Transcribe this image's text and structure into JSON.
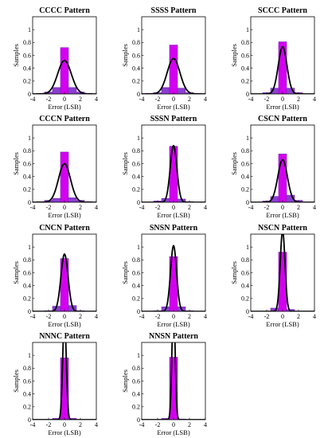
{
  "figure": {
    "colors": {
      "bar_fill": "#d400f0",
      "bar_stroke": "#7a22b8",
      "low_bar_fill": "#8b3fd0",
      "curve": "#000000",
      "axis": "#000000"
    }
  },
  "chart_data": [
    {
      "type": "bar",
      "title": "CCCC Pattern",
      "xlabel": "Error (LSB)",
      "ylabel": "Samples",
      "xlim": [
        -4,
        4
      ],
      "ylim": [
        0,
        1.2
      ],
      "xticks": [
        "-4",
        "-2",
        "0",
        "2",
        "4"
      ],
      "yticks": [
        "0",
        "0.2",
        "0.4",
        "0.6",
        "0.8",
        "1"
      ],
      "bins": [
        -3,
        -2,
        -1,
        0,
        1,
        2,
        3
      ],
      "values": [
        0.01,
        0.03,
        0.1,
        0.72,
        0.1,
        0.03,
        0.01
      ],
      "fit": {
        "mu": 0,
        "sigma": 0.85,
        "peak": 0.52
      }
    },
    {
      "type": "bar",
      "title": "SSSS Pattern",
      "xlabel": "Error (LSB)",
      "ylabel": "Samples",
      "xlim": [
        -4,
        4
      ],
      "ylim": [
        0,
        1.2
      ],
      "xticks": [
        "-4",
        "-2",
        "0",
        "2",
        "4"
      ],
      "yticks": [
        "0",
        "0.2",
        "0.4",
        "0.6",
        "0.8",
        "1"
      ],
      "bins": [
        -3,
        -2,
        -1,
        0,
        1,
        2,
        3
      ],
      "values": [
        0.01,
        0.02,
        0.1,
        0.76,
        0.09,
        0.02,
        0.01
      ],
      "fit": {
        "mu": 0,
        "sigma": 0.8,
        "peak": 0.55
      }
    },
    {
      "type": "bar",
      "title": "SCCC Pattern",
      "xlabel": "Error (LSB)",
      "ylabel": "Samples",
      "xlim": [
        -4,
        4
      ],
      "ylim": [
        0,
        1.2
      ],
      "xticks": [
        "-4",
        "-2",
        "0",
        "2",
        "4"
      ],
      "yticks": [
        "0",
        "0.2",
        "0.4",
        "0.6",
        "0.8",
        "1"
      ],
      "bins": [
        -2,
        -1,
        0,
        1,
        2
      ],
      "values": [
        0.02,
        0.09,
        0.81,
        0.09,
        0.02
      ],
      "fit": {
        "mu": 0,
        "sigma": 0.55,
        "peak": 0.73
      }
    },
    {
      "type": "bar",
      "title": "CCCN Pattern",
      "xlabel": "Error (LSB)",
      "ylabel": "Samples",
      "xlim": [
        -4,
        4
      ],
      "ylim": [
        0,
        1.2
      ],
      "xticks": [
        "-4",
        "-2",
        "0",
        "2",
        "4"
      ],
      "yticks": [
        "0",
        "0.2",
        "0.4",
        "0.6",
        "0.8",
        "1"
      ],
      "bins": [
        -3,
        -2,
        -1,
        0,
        1,
        2,
        3
      ],
      "values": [
        0.01,
        0.03,
        0.06,
        0.78,
        0.07,
        0.03,
        0.01
      ],
      "fit": {
        "mu": 0,
        "sigma": 0.75,
        "peak": 0.6
      }
    },
    {
      "type": "bar",
      "title": "SSSN Pattern",
      "xlabel": "Error (LSB)",
      "ylabel": "Samples",
      "xlim": [
        -4,
        4
      ],
      "ylim": [
        0,
        1.2
      ],
      "xticks": [
        "-4",
        "-2",
        "0",
        "2",
        "4"
      ],
      "yticks": [
        "0",
        "0.2",
        "0.4",
        "0.6",
        "0.8",
        "1"
      ],
      "bins": [
        -2,
        -1,
        0,
        1,
        2
      ],
      "values": [
        0.02,
        0.06,
        0.87,
        0.05,
        0.01
      ],
      "fit": {
        "mu": 0,
        "sigma": 0.42,
        "peak": 0.88
      }
    },
    {
      "type": "bar",
      "title": "CSCN Pattern",
      "xlabel": "Error (LSB)",
      "ylabel": "Samples",
      "xlim": [
        -4,
        4
      ],
      "ylim": [
        0,
        1.2
      ],
      "xticks": [
        "-4",
        "-2",
        "0",
        "2",
        "4"
      ],
      "yticks": [
        "0",
        "0.2",
        "0.4",
        "0.6",
        "0.8",
        "1"
      ],
      "bins": [
        -2,
        -1,
        0,
        1,
        2
      ],
      "values": [
        0.02,
        0.09,
        0.75,
        0.11,
        0.03
      ],
      "fit": {
        "mu": 0,
        "sigma": 0.6,
        "peak": 0.66
      }
    },
    {
      "type": "bar",
      "title": "CNCN Pattern",
      "xlabel": "Error (LSB)",
      "ylabel": "Samples",
      "xlim": [
        -4,
        4
      ],
      "ylim": [
        0,
        1.2
      ],
      "xticks": [
        "-4",
        "-2",
        "0",
        "2",
        "4"
      ],
      "yticks": [
        "0",
        "0.2",
        "0.4",
        "0.6",
        "0.8",
        "1"
      ],
      "bins": [
        -2,
        -1,
        0,
        1,
        2
      ],
      "values": [
        0.01,
        0.08,
        0.82,
        0.09,
        0.01
      ],
      "fit": {
        "mu": 0,
        "sigma": 0.45,
        "peak": 0.89
      }
    },
    {
      "type": "bar",
      "title": "SNSN Pattern",
      "xlabel": "Error (LSB)",
      "ylabel": "Samples",
      "xlim": [
        -4,
        4
      ],
      "ylim": [
        0,
        1.2
      ],
      "xticks": [
        "-4",
        "-2",
        "0",
        "2",
        "4"
      ],
      "yticks": [
        "0",
        "0.2",
        "0.4",
        "0.6",
        "0.8",
        "1"
      ],
      "bins": [
        -2,
        -1,
        0,
        1,
        2
      ],
      "values": [
        0.01,
        0.07,
        0.85,
        0.07,
        0.01
      ],
      "fit": {
        "mu": 0,
        "sigma": 0.38,
        "peak": 1.02
      }
    },
    {
      "type": "bar",
      "title": "NSCN Pattern",
      "xlabel": "Error (LSB)",
      "ylabel": "Samples",
      "xlim": [
        -4,
        4
      ],
      "ylim": [
        0,
        1.2
      ],
      "xticks": [
        "-4",
        "-2",
        "0",
        "2",
        "4"
      ],
      "yticks": [
        "0",
        "0.2",
        "0.4",
        "0.6",
        "0.8",
        "1"
      ],
      "bins": [
        -1,
        0,
        1
      ],
      "values": [
        0.05,
        0.92,
        0.03
      ],
      "fit": {
        "mu": 0,
        "sigma": 0.3,
        "peak": 1.25
      }
    },
    {
      "type": "bar",
      "title": "NNNC Pattern",
      "xlabel": "Error (LSB)",
      "ylabel": "Samples",
      "xlim": [
        -4,
        4
      ],
      "ylim": [
        0,
        1.2
      ],
      "xticks": [
        "-4",
        "-2",
        "0",
        "2",
        "4"
      ],
      "yticks": [
        "0",
        "0.2",
        "0.4",
        "0.6",
        "0.8",
        "1"
      ],
      "bins": [
        -1,
        0,
        1
      ],
      "values": [
        0.02,
        0.96,
        0.02
      ],
      "fit": {
        "mu": 0,
        "sigma": 0.22,
        "peak": 1.6
      }
    },
    {
      "type": "bar",
      "title": "NNSN Pattern",
      "xlabel": "Error (LSB)",
      "ylabel": "Samples",
      "xlim": [
        -4,
        4
      ],
      "ylim": [
        0,
        1.2
      ],
      "xticks": [
        "-4",
        "-2",
        "0",
        "2",
        "4"
      ],
      "yticks": [
        "0",
        "0.2",
        "0.4",
        "0.6",
        "0.8",
        "1"
      ],
      "bins": [
        -1,
        0,
        1
      ],
      "values": [
        0.02,
        0.97,
        0.01
      ],
      "fit": {
        "mu": 0,
        "sigma": 0.2,
        "peak": 1.8
      }
    }
  ]
}
